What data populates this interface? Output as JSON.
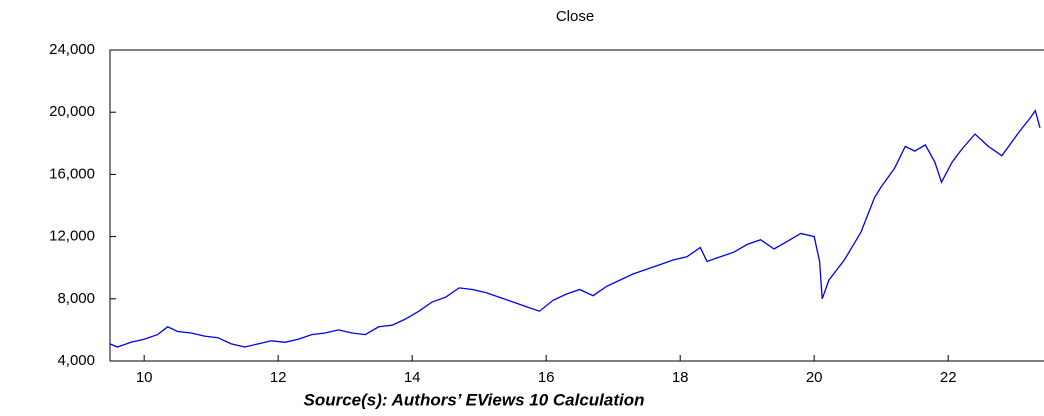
{
  "chart_data": {
    "type": "line",
    "subtitle": "Close",
    "note": "Source(s): Authors’ EViews 10 Calculation",
    "x": [
      9.49,
      9.6,
      9.8,
      10.0,
      10.2,
      10.35,
      10.5,
      10.7,
      10.9,
      11.1,
      11.3,
      11.5,
      11.7,
      11.9,
      12.1,
      12.3,
      12.5,
      12.7,
      12.9,
      13.1,
      13.3,
      13.5,
      13.7,
      13.9,
      14.1,
      14.3,
      14.5,
      14.7,
      14.9,
      15.1,
      15.3,
      15.5,
      15.7,
      15.9,
      16.1,
      16.3,
      16.5,
      16.7,
      16.9,
      17.1,
      17.3,
      17.5,
      17.7,
      17.9,
      18.1,
      18.3,
      18.4,
      18.6,
      18.8,
      19.0,
      19.2,
      19.4,
      19.6,
      19.8,
      20.0,
      20.08,
      20.12,
      20.22,
      20.45,
      20.7,
      20.9,
      21.0,
      21.2,
      21.36,
      21.5,
      21.66,
      21.8,
      21.9,
      22.06,
      22.2,
      22.4,
      22.6,
      22.8,
      23.07,
      23.22,
      23.3,
      23.37
    ],
    "series": [
      {
        "name": "Close",
        "color": "#0000ee",
        "values": [
          5100,
          4900,
          5200,
          5400,
          5700,
          6200,
          5900,
          5800,
          5600,
          5500,
          5100,
          4900,
          5100,
          5300,
          5200,
          5400,
          5700,
          5800,
          6000,
          5800,
          5700,
          6200,
          6300,
          6700,
          7200,
          7800,
          8100,
          8700,
          8600,
          8400,
          8100,
          7800,
          7500,
          7200,
          7900,
          8300,
          8600,
          8200,
          8800,
          9200,
          9600,
          9900,
          10200,
          10500,
          10700,
          11300,
          10400,
          10700,
          11000,
          11500,
          11800,
          11200,
          11700,
          12200,
          12000,
          10400,
          8000,
          9200,
          10500,
          12300,
          14500,
          15200,
          16400,
          17800,
          17500,
          17900,
          16800,
          15500,
          16800,
          17600,
          18600,
          17800,
          17200,
          18800,
          19600,
          20100,
          19000
        ]
      }
    ],
    "xlim": [
      9.49,
      23.37
    ],
    "xticks": [
      10,
      12,
      14,
      16,
      18,
      20,
      22
    ],
    "ylim": [
      4000,
      24000
    ],
    "yticks": [
      {
        "value": 4000,
        "label": "4,000"
      },
      {
        "value": 8000,
        "label": "8,000"
      },
      {
        "value": 12000,
        "label": "12,000"
      },
      {
        "value": 16000,
        "label": "16,000"
      },
      {
        "value": 20000,
        "label": "20,000"
      },
      {
        "value": 24000,
        "label": "24,000"
      }
    ]
  }
}
